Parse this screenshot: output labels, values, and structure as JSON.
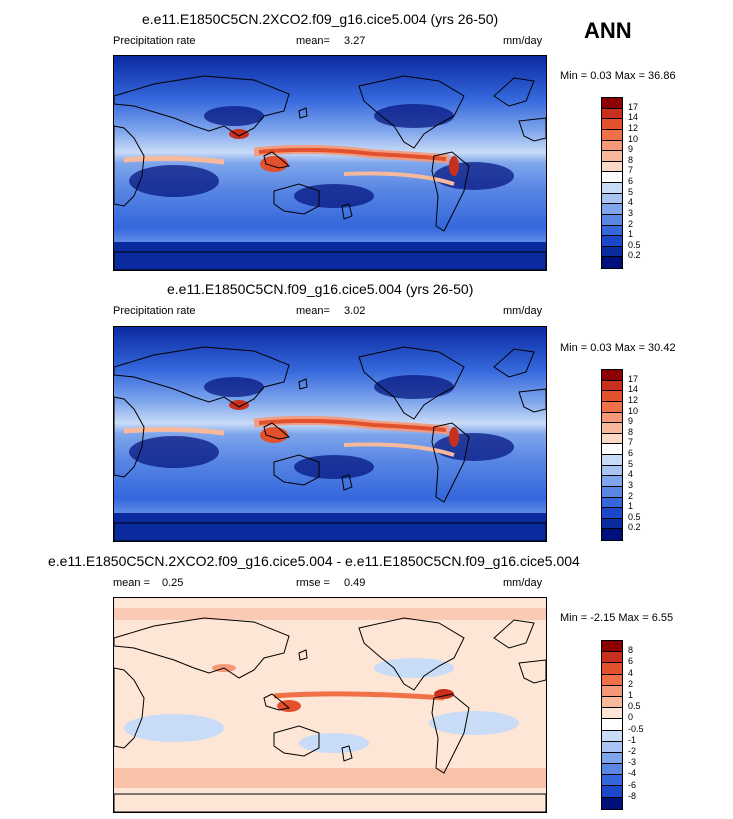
{
  "season": "ANN",
  "panels": [
    {
      "title": "e.e11.E1850C5CN.2XCO2.f09_g16.cice5.004 (yrs 26-50)",
      "left_label": "Precipitation rate",
      "stat_label": "mean=",
      "stat_value": "3.27",
      "units": "mm/day",
      "minmax": "Min =   0.03 Max =  36.86",
      "map_kind": "precip"
    },
    {
      "title": "e.e11.E1850C5CN.f09_g16.cice5.004 (yrs 26-50)",
      "left_label": "Precipitation rate",
      "stat_label": "mean=",
      "stat_value": "3.02",
      "units": "mm/day",
      "minmax": "Min =   0.03 Max =  30.42",
      "map_kind": "precip"
    },
    {
      "title": "e.e11.E1850C5CN.2XCO2.f09_g16.cice5.004 - e.e11.E1850C5CN.f09_g16.cice5.004",
      "left_label": "mean =",
      "left_value": "0.25",
      "stat_label": "rmse =",
      "stat_value": "0.49",
      "units": "mm/day",
      "minmax": "Min =  -2.15 Max =   6.55",
      "map_kind": "diff"
    }
  ],
  "chart_data": {
    "type": "heatmap",
    "description_levels": "contour fill levels",
    "precip_levels": [
      "17",
      "14",
      "12",
      "10",
      "9",
      "8",
      "7",
      "6",
      "5",
      "4",
      "3",
      "2",
      "1",
      "0.5",
      "0.2"
    ],
    "precip_colors": [
      "#8b0000",
      "#c8301e",
      "#e2502c",
      "#f07048",
      "#f59878",
      "#f8b89c",
      "#fcd9c4",
      "#ffffff",
      "#c9dcf7",
      "#a9c4f2",
      "#7fa6ec",
      "#5a87e4",
      "#3567dc",
      "#1a48c8",
      "#0a2aa0",
      "#00107a"
    ],
    "diff_levels": [
      "8",
      "6",
      "4",
      "2",
      "1",
      "0.5",
      "0",
      "-0.5",
      "-1",
      "-2",
      "-3",
      "-4",
      "-6",
      "-8"
    ],
    "diff_colors": [
      "#8b0000",
      "#c8301e",
      "#e2502c",
      "#f07048",
      "#f59878",
      "#f8b89c",
      "#fde6d6",
      "#ffffff",
      "#c9dcf7",
      "#a9c4f2",
      "#7fa6ec",
      "#5a87e4",
      "#3567dc",
      "#1a48c8",
      "#00107a"
    ]
  }
}
